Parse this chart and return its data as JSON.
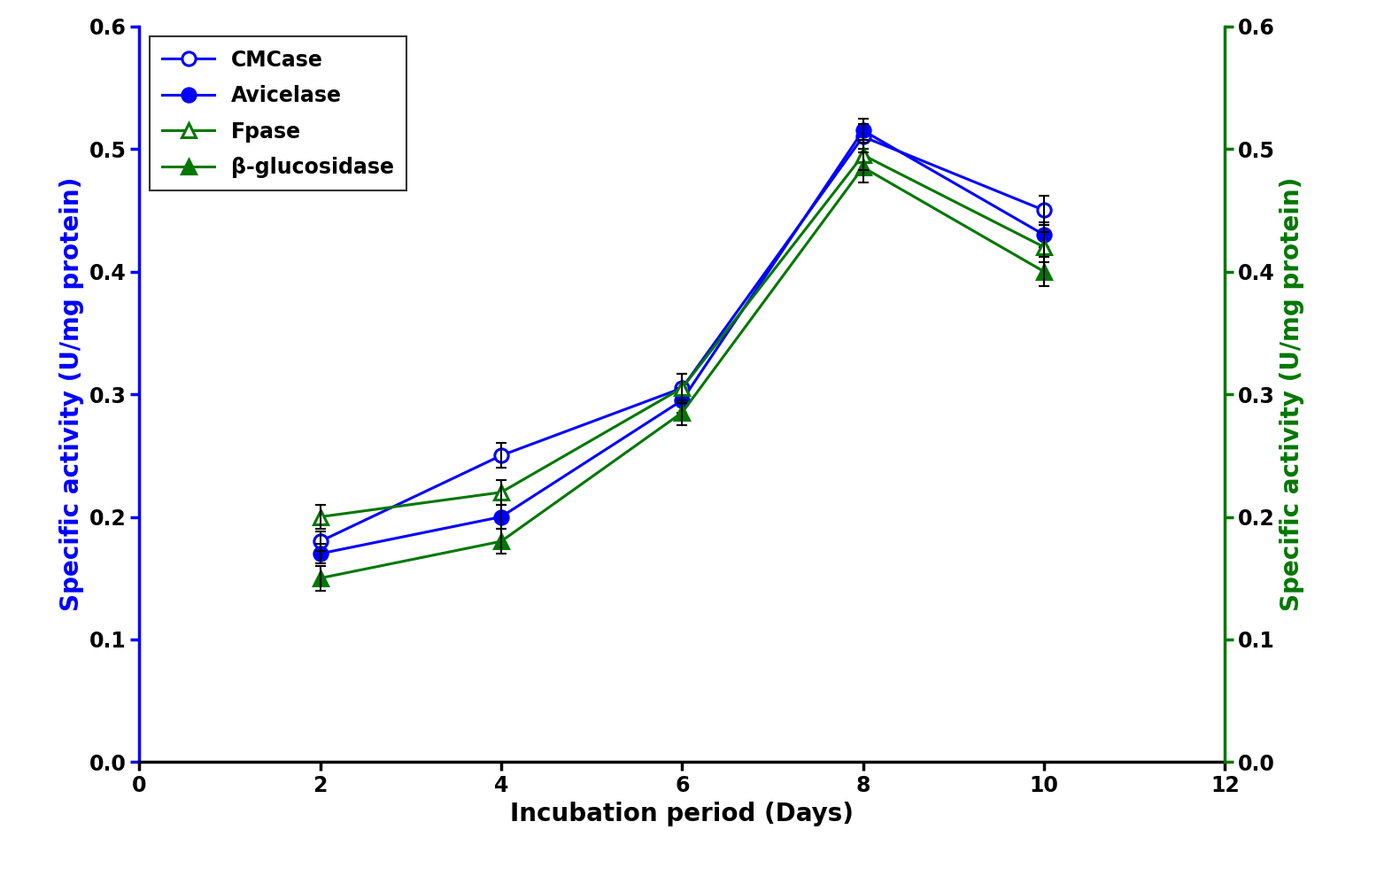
{
  "x": [
    2,
    4,
    6,
    8,
    10
  ],
  "CMCase": [
    0.18,
    0.25,
    0.305,
    0.51,
    0.45
  ],
  "CMCase_err": [
    0.008,
    0.01,
    0.012,
    0.01,
    0.012
  ],
  "Avicelase": [
    0.17,
    0.2,
    0.295,
    0.515,
    0.43
  ],
  "Avicelase_err": [
    0.008,
    0.01,
    0.01,
    0.01,
    0.01
  ],
  "Fpase": [
    0.2,
    0.22,
    0.305,
    0.495,
    0.42
  ],
  "Fpase_err": [
    0.01,
    0.01,
    0.012,
    0.012,
    0.012
  ],
  "BGlucosidase": [
    0.15,
    0.18,
    0.285,
    0.485,
    0.4
  ],
  "BGlucosidase_err": [
    0.01,
    0.01,
    0.01,
    0.012,
    0.012
  ],
  "xlabel": "Incubation period (Days)",
  "ylabel_left": "Specific activity (U/mg protein)",
  "ylabel_right": "Specific activity (U/mg protein)",
  "xlim": [
    0,
    12
  ],
  "ylim": [
    0,
    0.6
  ],
  "xticks": [
    0,
    2,
    4,
    6,
    8,
    10,
    12
  ],
  "yticks": [
    0.0,
    0.1,
    0.2,
    0.3,
    0.4,
    0.5,
    0.6
  ],
  "left_axis_color": "#0000FF",
  "right_axis_color": "#007700",
  "cmcase_color": "#0000FF",
  "avicelase_color": "#0000FF",
  "fpase_color": "#007700",
  "bglucos_color": "#007700",
  "legend_labels": [
    "CMCase",
    "Avicelase",
    "Fpase",
    "β-glucosidase"
  ],
  "legend_fontsize": 17,
  "axis_label_fontsize": 20,
  "tick_fontsize": 17,
  "line_width": 2.2,
  "marker_size": 11,
  "spine_linewidth": 2.5
}
